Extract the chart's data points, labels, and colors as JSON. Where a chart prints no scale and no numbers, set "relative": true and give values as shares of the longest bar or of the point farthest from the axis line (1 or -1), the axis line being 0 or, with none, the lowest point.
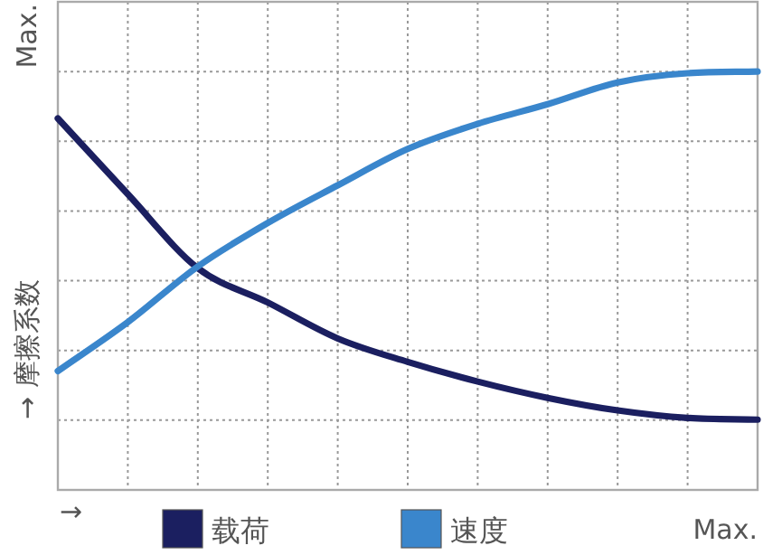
{
  "chart_data": {
    "type": "line",
    "relative": true,
    "ylabel": "→ 摩擦系数",
    "xlabel": "→",
    "annotations": [
      "Max.",
      "Max."
    ],
    "categories": [
      null,
      null,
      null,
      null,
      null,
      null,
      null,
      null,
      null,
      null,
      null
    ],
    "series": [
      {
        "name": "载荷",
        "color": "#1b1f60",
        "values": [
          0.888,
          0.707,
          0.53,
          0.448,
          0.362,
          0.306,
          0.259,
          0.22,
          0.19,
          0.172,
          0.168
        ]
      },
      {
        "name": "速度",
        "color": "#3a86cc",
        "values": [
          0.284,
          0.401,
          0.534,
          0.638,
          0.728,
          0.815,
          0.875,
          0.922,
          0.974,
          0.996,
          1
        ]
      }
    ],
    "grid": true,
    "legend": "bottom",
    "marker": "none",
    "line_style": "solid"
  }
}
